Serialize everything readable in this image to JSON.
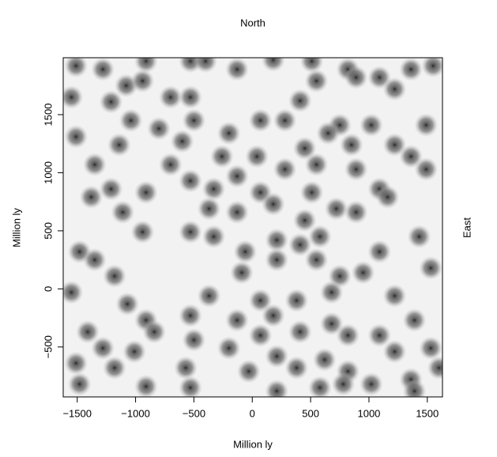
{
  "chart_data": {
    "type": "scatter",
    "title": "North",
    "x_label": "Million ly",
    "y_label": "Million ly",
    "right_label": "East",
    "xlim": [
      -1620,
      1630
    ],
    "ylim": [
      -930,
      1990
    ],
    "xticks": [
      {
        "value": -1500,
        "label": "−1500"
      },
      {
        "value": -1000,
        "label": "−1000"
      },
      {
        "value": -500,
        "label": "−500"
      },
      0,
      500,
      1000,
      1500
    ],
    "yticks": [
      {
        "value": -500,
        "label": "−500"
      },
      0,
      500,
      1000,
      1500
    ],
    "color": "#3a3a3a",
    "x": [
      -1510,
      -1280,
      -910,
      -530,
      -400,
      -130,
      180,
      510,
      820,
      1090,
      1360,
      1550,
      -1550,
      -1210,
      -1080,
      -940,
      -700,
      -530,
      550,
      890,
      1220,
      -1040,
      -800,
      -500,
      -200,
      70,
      280,
      410,
      750,
      1020,
      1490,
      -1510,
      -1140,
      -600,
      -260,
      40,
      450,
      650,
      850,
      1220,
      1360,
      -1350,
      -700,
      -530,
      -130,
      280,
      550,
      890,
      1090,
      1490,
      -1210,
      -910,
      -330,
      70,
      510,
      720,
      1160,
      -1380,
      -1110,
      -940,
      -370,
      -130,
      180,
      450,
      890,
      -1480,
      -1350,
      -530,
      -330,
      -60,
      210,
      410,
      580,
      1090,
      1430,
      -1180,
      -90,
      210,
      550,
      750,
      950,
      1530,
      -1550,
      -1070,
      -370,
      70,
      380,
      680,
      1220,
      -910,
      -530,
      -130,
      180,
      680,
      1390,
      -1410,
      -840,
      -500,
      70,
      410,
      820,
      1090,
      1530,
      -1280,
      -1010,
      -200,
      210,
      620,
      1220,
      -1510,
      -1180,
      -570,
      -30,
      380,
      820,
      1020,
      1360,
      1600,
      -1480,
      -910,
      -530,
      210,
      580,
      780,
      1390
    ],
    "values": [
      1920,
      1890,
      1960,
      1960,
      1960,
      1890,
      1970,
      1960,
      1890,
      1820,
      1890,
      1920,
      1650,
      1610,
      1750,
      1790,
      1650,
      1650,
      1790,
      1820,
      1720,
      1450,
      1380,
      1450,
      1340,
      1450,
      1450,
      1620,
      1410,
      1410,
      1410,
      1310,
      1240,
      1270,
      1140,
      1140,
      1210,
      1340,
      1240,
      1240,
      1140,
      1070,
      1070,
      930,
      970,
      1030,
      1070,
      1030,
      860,
      1030,
      860,
      830,
      860,
      830,
      830,
      690,
      790,
      790,
      660,
      490,
      690,
      660,
      730,
      590,
      660,
      320,
      250,
      490,
      450,
      320,
      420,
      380,
      450,
      320,
      450,
      110,
      140,
      250,
      250,
      110,
      140,
      180,
      -30,
      -130,
      -60,
      -100,
      -100,
      -30,
      -60,
      -270,
      -230,
      -270,
      -230,
      -300,
      -270,
      -370,
      -370,
      -440,
      -400,
      -370,
      -400,
      -400,
      -510,
      -510,
      -540,
      -510,
      -580,
      -610,
      -540,
      -640,
      -680,
      -680,
      -710,
      -680,
      -710,
      -820,
      -780,
      -680,
      -820,
      -840,
      -850,
      -880,
      -850,
      -820,
      -880
    ]
  }
}
